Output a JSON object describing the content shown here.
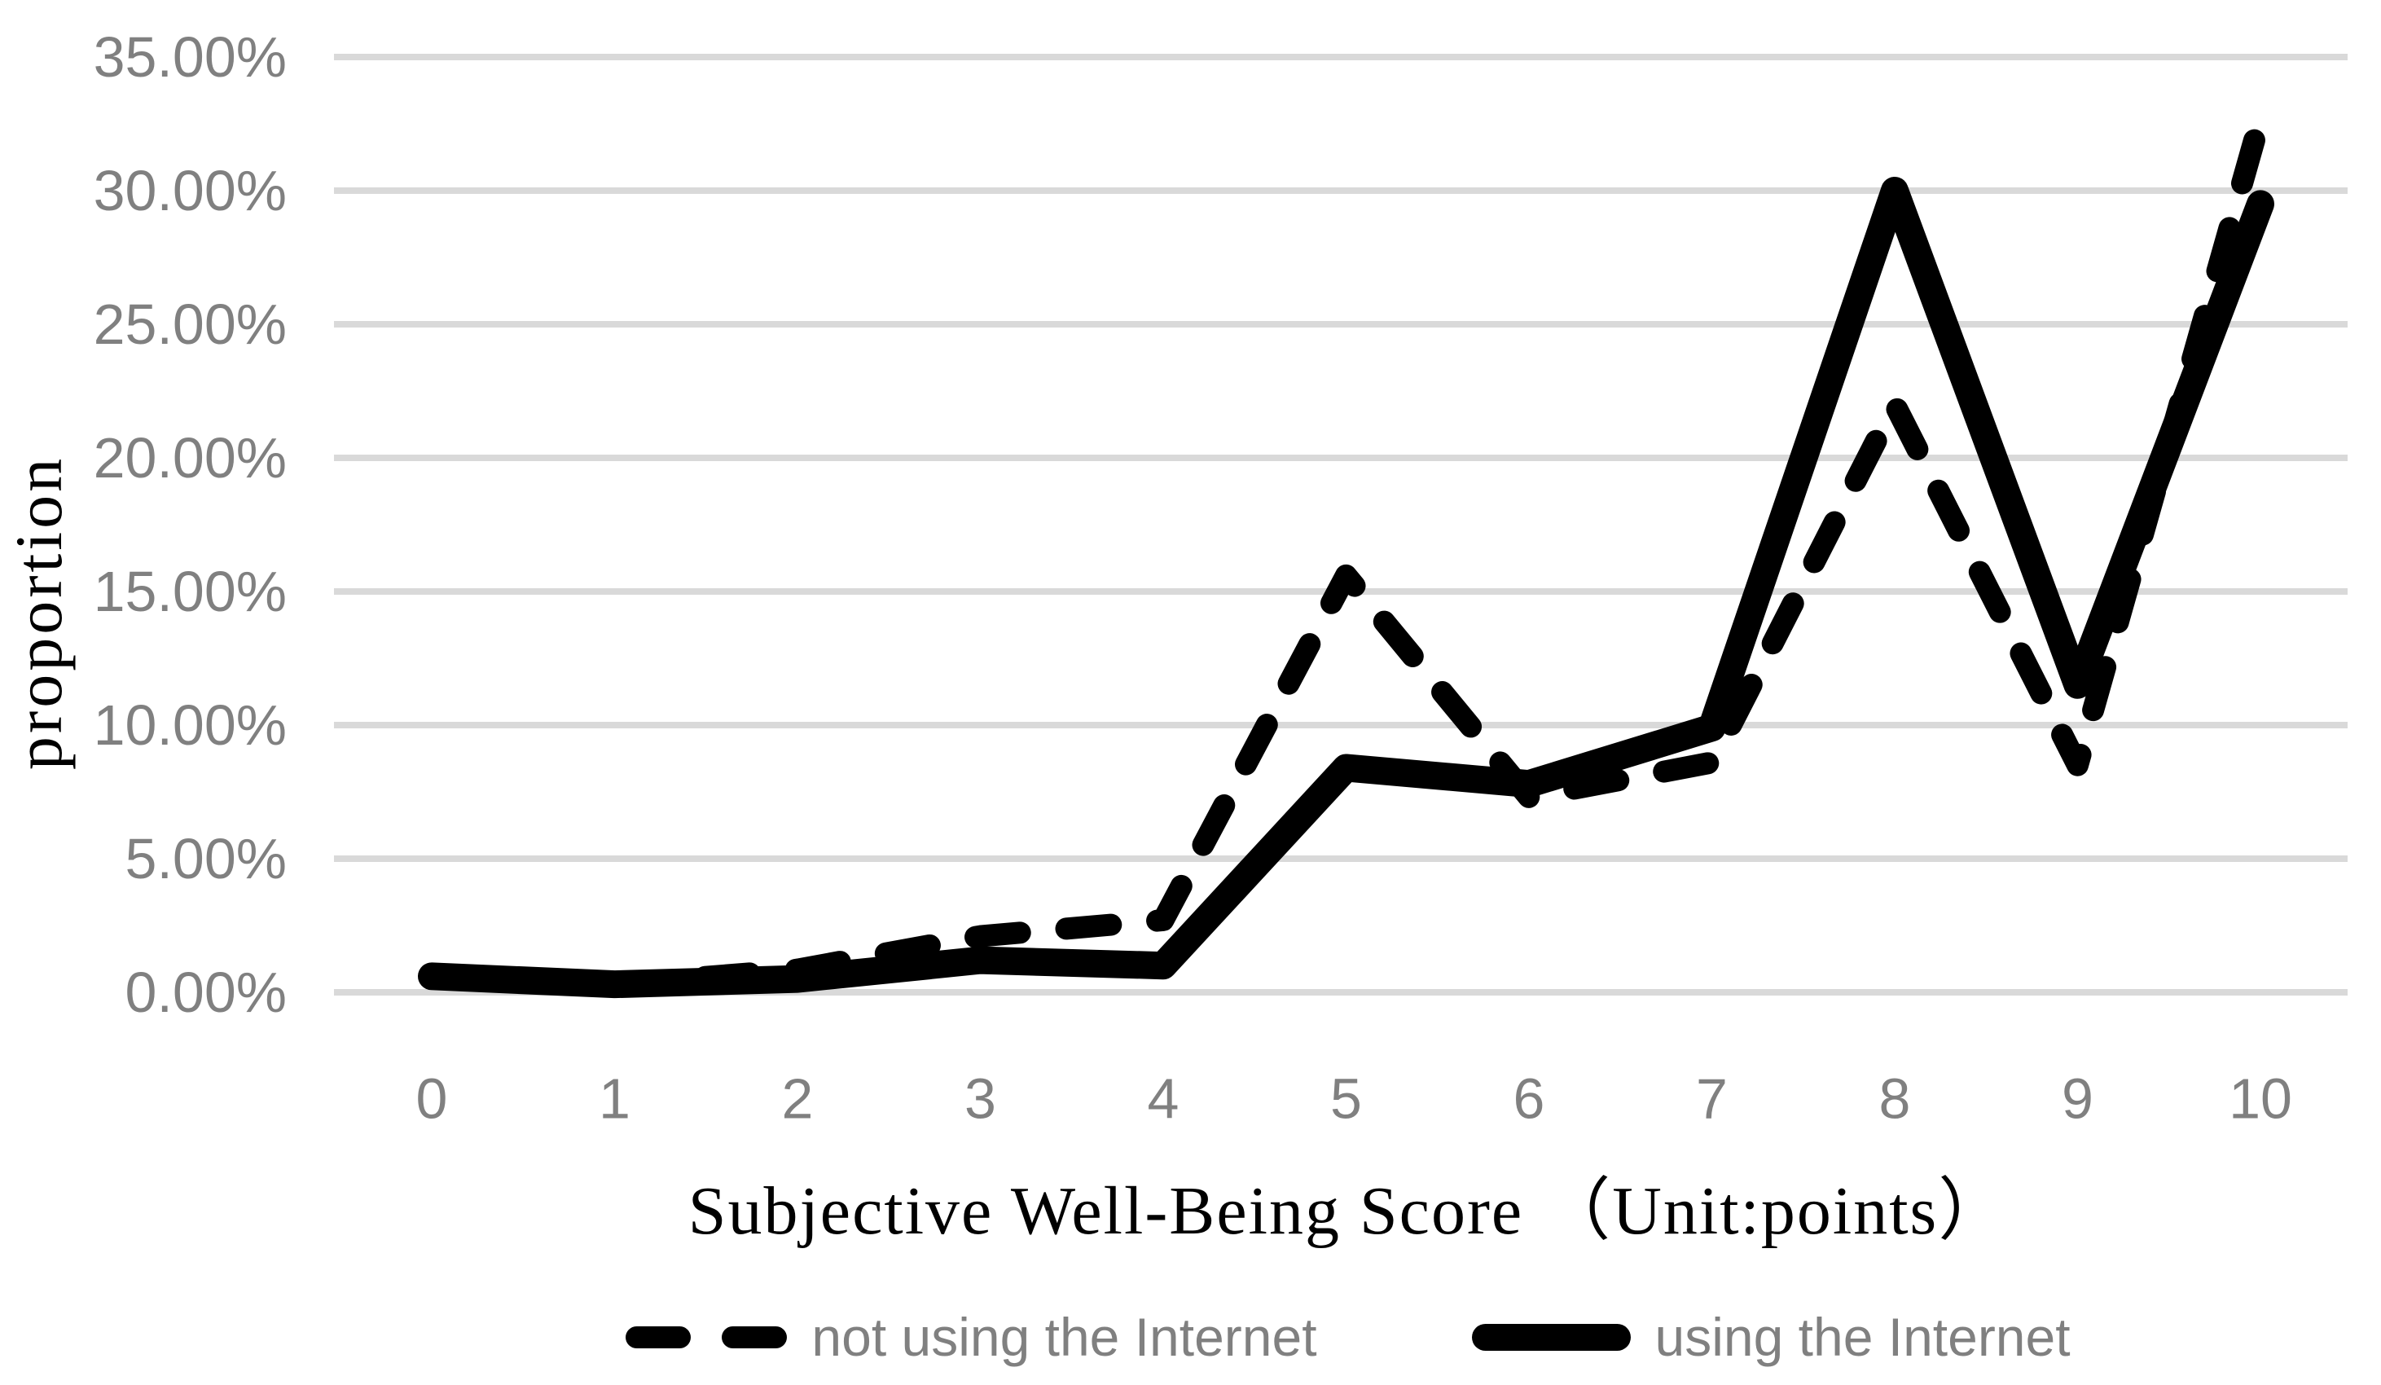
{
  "chart_data": {
    "type": "line",
    "title": "",
    "xlabel": "Subjective Well-Being Score （Unit:points）",
    "ylabel": "proportion",
    "categories": [
      "0",
      "1",
      "2",
      "3",
      "4",
      "5",
      "6",
      "7",
      "8",
      "9",
      "10"
    ],
    "series": [
      {
        "name": "not using the Internet",
        "style": "dashed",
        "values": [
          0.55,
          0.3,
          0.85,
          2.1,
          2.7,
          15.6,
          7.3,
          8.6,
          22.0,
          8.5,
          32.7
        ]
      },
      {
        "name": "using the Internet",
        "style": "solid",
        "values": [
          0.6,
          0.3,
          0.5,
          1.2,
          1.0,
          8.4,
          7.8,
          9.9,
          30.0,
          11.5,
          29.5
        ]
      }
    ],
    "ylim": [
      0,
      35
    ],
    "yticks": {
      "values": [
        0,
        5,
        10,
        15,
        20,
        25,
        30,
        35
      ],
      "labels": [
        "0.00%",
        "5.00%",
        "10.00%",
        "15.00%",
        "20.00%",
        "25.00%",
        "30.00%",
        "35.00%"
      ]
    },
    "grid": "horizontal-only",
    "legend_position": "bottom-center"
  },
  "colors": {
    "line": "#000000",
    "gridline": "#d9d9d9",
    "tick_label": "#808080",
    "axis_title": "#000000",
    "legend_text": "#808080",
    "background": "#ffffff"
  }
}
